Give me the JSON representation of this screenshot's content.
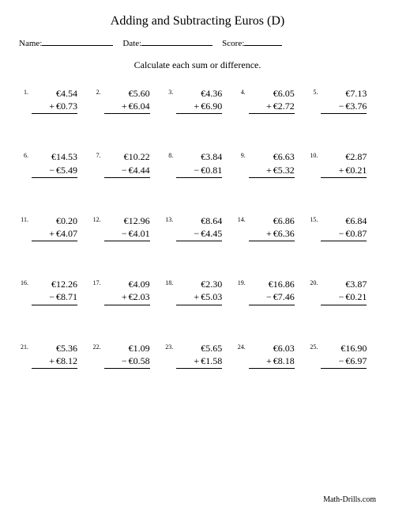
{
  "title": "Adding and Subtracting Euros (D)",
  "meta": {
    "name_label": "Name:",
    "date_label": "Date:",
    "score_label": "Score:"
  },
  "instruction": "Calculate each sum or difference.",
  "problems": [
    {
      "n": "1.",
      "top": "€4.54",
      "op": "+",
      "bot": "€0.73"
    },
    {
      "n": "2.",
      "top": "€5.60",
      "op": "+",
      "bot": "€6.04"
    },
    {
      "n": "3.",
      "top": "€4.36",
      "op": "+",
      "bot": "€6.90"
    },
    {
      "n": "4.",
      "top": "€6.05",
      "op": "+",
      "bot": "€2.72"
    },
    {
      "n": "5.",
      "top": "€7.13",
      "op": "−",
      "bot": "€3.76"
    },
    {
      "n": "6.",
      "top": "€14.53",
      "op": "−",
      "bot": "€5.49"
    },
    {
      "n": "7.",
      "top": "€10.22",
      "op": "−",
      "bot": "€4.44"
    },
    {
      "n": "8.",
      "top": "€3.84",
      "op": "−",
      "bot": "€0.81"
    },
    {
      "n": "9.",
      "top": "€6.63",
      "op": "+",
      "bot": "€5.32"
    },
    {
      "n": "10.",
      "top": "€2.87",
      "op": "+",
      "bot": "€0.21"
    },
    {
      "n": "11.",
      "top": "€0.20",
      "op": "+",
      "bot": "€4.07"
    },
    {
      "n": "12.",
      "top": "€12.96",
      "op": "−",
      "bot": "€4.01"
    },
    {
      "n": "13.",
      "top": "€8.64",
      "op": "−",
      "bot": "€4.45"
    },
    {
      "n": "14.",
      "top": "€6.86",
      "op": "+",
      "bot": "€6.36"
    },
    {
      "n": "15.",
      "top": "€6.84",
      "op": "−",
      "bot": "€0.87"
    },
    {
      "n": "16.",
      "top": "€12.26",
      "op": "−",
      "bot": "€8.71"
    },
    {
      "n": "17.",
      "top": "€4.09",
      "op": "+",
      "bot": "€2.03"
    },
    {
      "n": "18.",
      "top": "€2.30",
      "op": "+",
      "bot": "€5.03"
    },
    {
      "n": "19.",
      "top": "€16.86",
      "op": "−",
      "bot": "€7.46"
    },
    {
      "n": "20.",
      "top": "€3.87",
      "op": "−",
      "bot": "€0.21"
    },
    {
      "n": "21.",
      "top": "€5.36",
      "op": "+",
      "bot": "€8.12"
    },
    {
      "n": "22.",
      "top": "€1.09",
      "op": "−",
      "bot": "€0.58"
    },
    {
      "n": "23.",
      "top": "€5.65",
      "op": "+",
      "bot": "€1.58"
    },
    {
      "n": "24.",
      "top": "€6.03",
      "op": "+",
      "bot": "€8.18"
    },
    {
      "n": "25.",
      "top": "€16.90",
      "op": "−",
      "bot": "€6.97"
    }
  ],
  "footer": "Math-Drills.com"
}
